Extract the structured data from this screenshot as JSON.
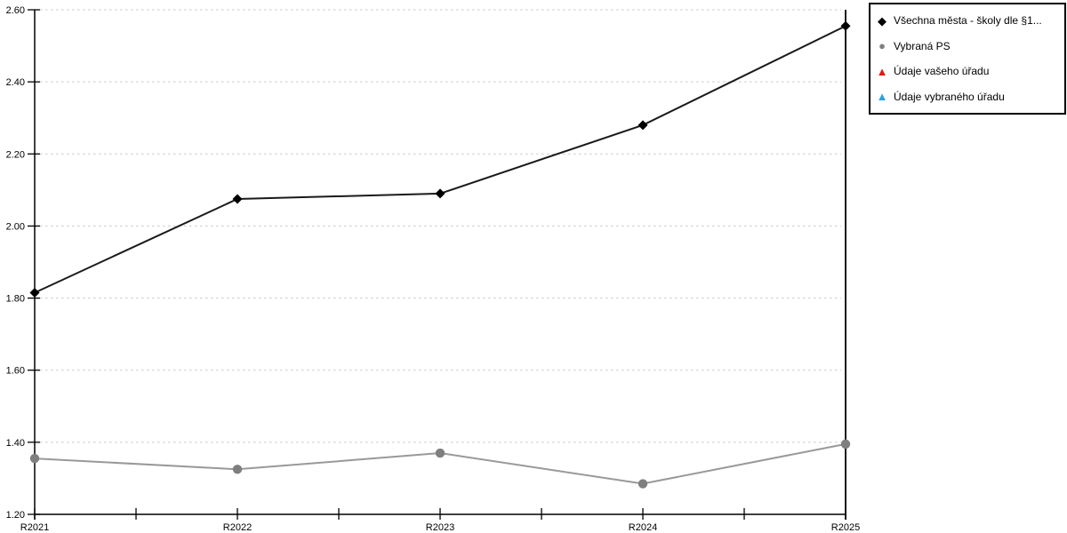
{
  "chart_data": {
    "type": "line",
    "categories": [
      "R2021",
      "R2022",
      "R2023",
      "R2024",
      "R2025"
    ],
    "series": [
      {
        "name": "Všechna města - školy dle §1...",
        "marker": "diamond",
        "line_color": "#1a1a1a",
        "marker_color": "#000000",
        "values": [
          1.815,
          2.075,
          2.09,
          2.28,
          2.555
        ]
      },
      {
        "name": "Vybraná PS",
        "marker": "circle",
        "line_color": "#999999",
        "marker_color": "#7f7f7f",
        "values": [
          1.355,
          1.325,
          1.37,
          1.285,
          1.395
        ]
      },
      {
        "name": "Údaje vašeho úřadu",
        "marker": "triangle",
        "line_color": "#ee1111",
        "marker_color": "#ee1111",
        "values": []
      },
      {
        "name": "Údaje vybraného úřadu",
        "marker": "triangle",
        "line_color": "#2aa2e2",
        "marker_color": "#2aa2e2",
        "values": []
      }
    ],
    "title": "",
    "xlabel": "",
    "ylabel": "",
    "ylim": [
      1.2,
      2.6
    ],
    "yticks": [
      1.2,
      1.4,
      1.6,
      1.8,
      2.0,
      2.2,
      2.4,
      2.6
    ],
    "ytick_labels": [
      "1.20",
      "1.40",
      "1.60",
      "1.80",
      "2.00",
      "2.20",
      "2.40",
      "2.60"
    ],
    "grid": "horizontal-dashed",
    "grid_color": "#c9c9c9",
    "axis_color": "#000000",
    "legend_position": "top-right"
  }
}
